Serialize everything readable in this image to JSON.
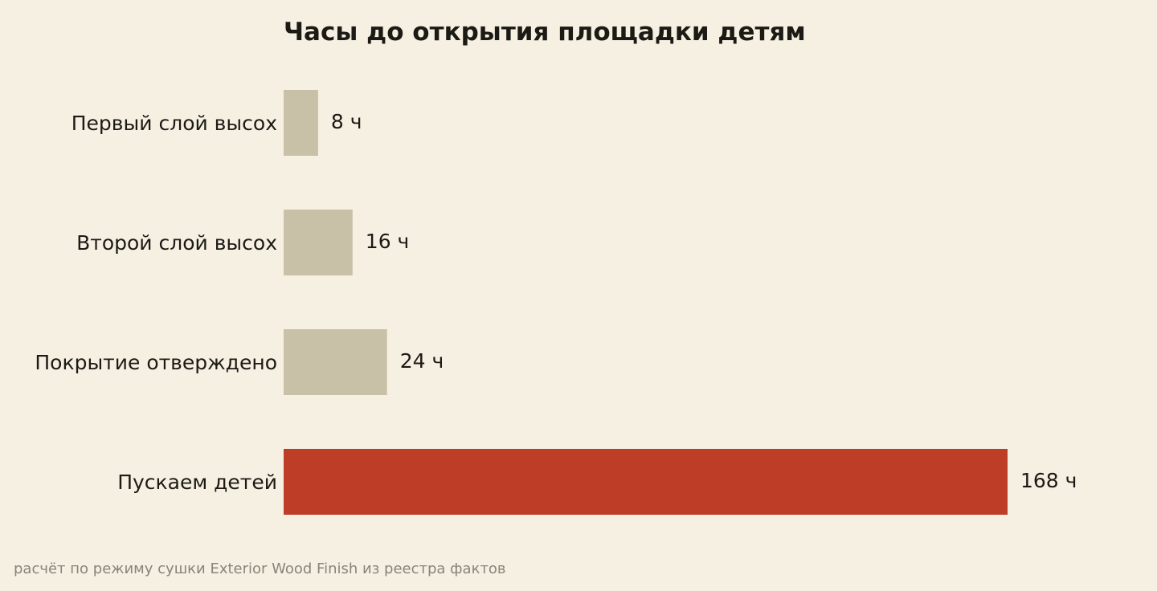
{
  "chart_data": {
    "type": "bar",
    "orientation": "horizontal",
    "title": "Часы до открытия площадки детям",
    "categories": [
      "Первый слой высох",
      "Второй слой высох",
      "Покрытие отверждено",
      "Пускаем детей"
    ],
    "values": [
      8,
      16,
      24,
      168
    ],
    "value_labels": [
      "8 ч",
      "16 ч",
      "24 ч",
      "168 ч"
    ],
    "colors": [
      "#c9c0a8",
      "#c9c0a8",
      "#c9c0a8",
      "#bd3d27"
    ],
    "xlim": [
      0,
      168
    ],
    "grid": false,
    "source": "расчёт по режиму сушки Exterior Wood Finish из реестра фактов"
  }
}
